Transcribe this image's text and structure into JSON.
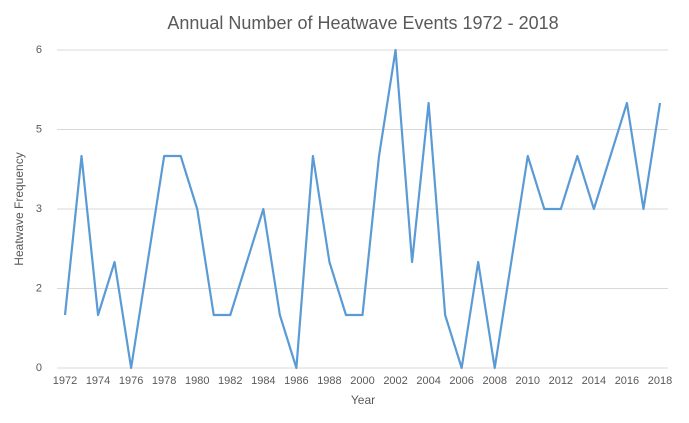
{
  "chart_data": {
    "type": "line",
    "title": "Annual Number of Heatwave Events 1972 - 2018",
    "x_label": "Year",
    "y_label": "Heatwave Frequency",
    "categories": [
      "1972",
      null,
      "1974",
      null,
      "1976",
      null,
      "1978",
      null,
      "1980",
      null,
      "1982",
      null,
      "1984",
      null,
      "1986",
      null,
      "1988",
      null,
      "2000",
      null,
      "2002",
      null,
      "2004",
      null,
      "2006",
      null,
      "2008",
      null,
      "2010",
      null,
      "2012",
      null,
      "2014",
      null,
      "2016",
      null,
      "2018"
    ],
    "series": [
      {
        "name": "Heatwave Frequency",
        "color": "#5b9bd5",
        "values": [
          1,
          4,
          1,
          2,
          0,
          2,
          4,
          4,
          3,
          1,
          1,
          2,
          3,
          1,
          0,
          4,
          2,
          1,
          1,
          4,
          6,
          2,
          5,
          1,
          0,
          2,
          0,
          2,
          4,
          3,
          3,
          4,
          3,
          4,
          5,
          3,
          5
        ]
      }
    ],
    "ylim": [
      0,
      6
    ],
    "yticks": [
      0,
      {
        "value": 1.5,
        "label": "2"
      },
      3,
      {
        "value": 4.5,
        "label": "5"
      },
      6
    ],
    "grid": true
  }
}
